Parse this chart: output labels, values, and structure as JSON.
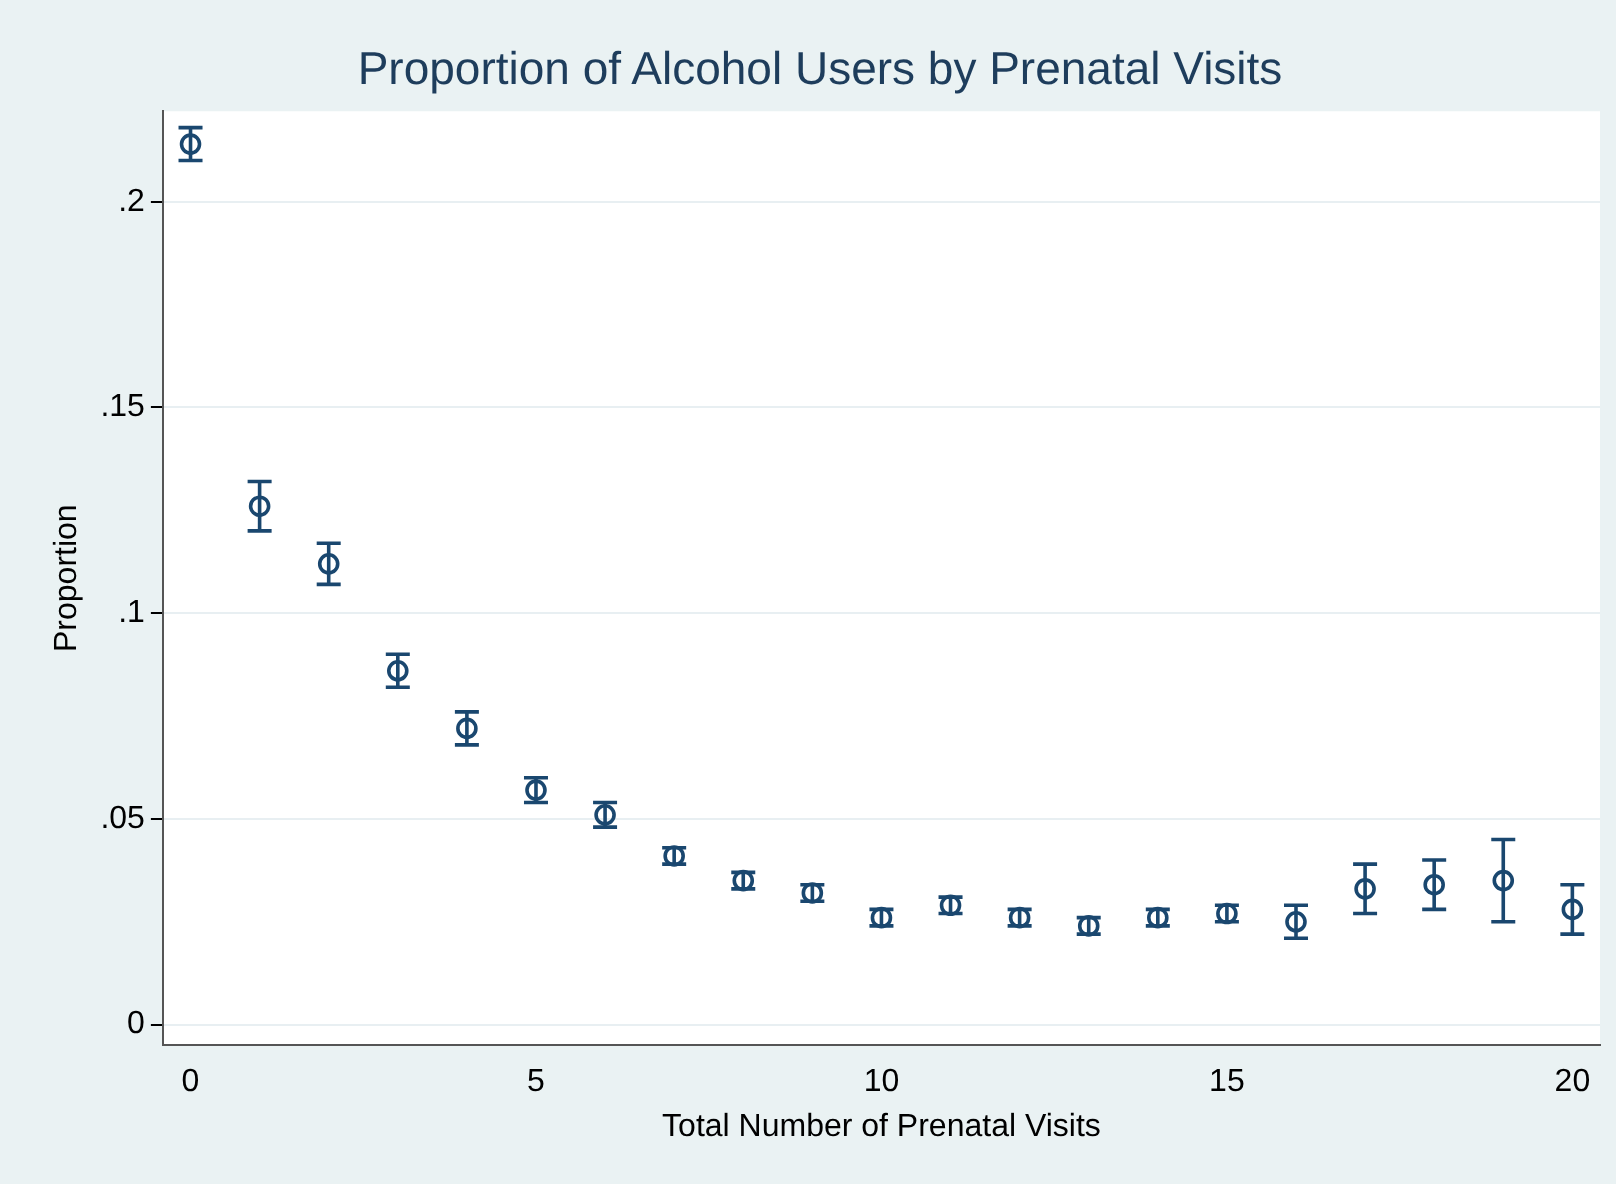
{
  "chart_data": {
    "type": "scatter",
    "title": "Proportion of Alcohol Users by Prenatal Visits",
    "xlabel": "Total Number of Prenatal Visits",
    "ylabel": "Proportion",
    "x": [
      0,
      1,
      2,
      3,
      4,
      5,
      6,
      7,
      8,
      9,
      10,
      11,
      12,
      13,
      14,
      15,
      16,
      17,
      18,
      19,
      20
    ],
    "series": [
      {
        "color": "#1a476f",
        "values": [
          0.214,
          0.126,
          0.112,
          0.086,
          0.072,
          0.057,
          0.051,
          0.041,
          0.035,
          0.032,
          0.026,
          0.029,
          0.026,
          0.024,
          0.026,
          0.027,
          0.025,
          0.033,
          0.034,
          0.035,
          0.028
        ],
        "errors": [
          0.004,
          0.006,
          0.005,
          0.004,
          0.004,
          0.003,
          0.003,
          0.002,
          0.002,
          0.002,
          0.002,
          0.002,
          0.002,
          0.002,
          0.002,
          0.002,
          0.004,
          0.006,
          0.006,
          0.01,
          0.006
        ]
      }
    ],
    "xlim": [
      -0.4,
      20.4
    ],
    "xticks": [
      0,
      5,
      10,
      15,
      20
    ],
    "ylim": [
      -0.005,
      0.222
    ],
    "yticks": [
      {
        "value": 0,
        "label": "0"
      },
      {
        "value": 0.05,
        "label": ".05"
      },
      {
        "value": 0.1,
        "label": ".1"
      },
      {
        "value": 0.15,
        "label": ".15"
      },
      {
        "value": 0.2,
        "label": ".2"
      }
    ],
    "grid": "y",
    "legend": false
  }
}
